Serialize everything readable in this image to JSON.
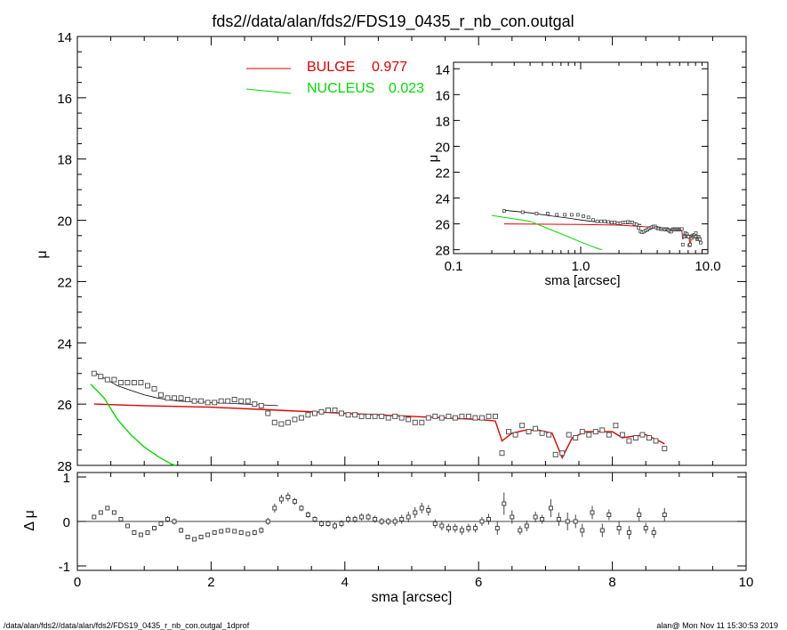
{
  "title": "fds2//data/alan/fds2/FDS19_0435_r_nb_con.outgal",
  "footer": {
    "left": "/data/alan/fds2//data/alan/fds2/FDS19_0435_r_nb_con.outgal_1dprof",
    "right": "alan@  Mon Nov 11 15:30:53 2019"
  },
  "colors": {
    "bulge": "#e00000",
    "nucleus": "#00dd00",
    "data": "#000000",
    "model": "#000000"
  },
  "chart_data": [
    {
      "panel": "main",
      "type": "scatter",
      "xlabel": "sma [arcsec]",
      "ylabel": "μ",
      "xlim": [
        0,
        10
      ],
      "ylim": [
        28,
        14
      ],
      "yticks": [
        14,
        16,
        18,
        20,
        22,
        24,
        26,
        28
      ],
      "xticks": [
        0,
        2,
        4,
        6,
        8,
        10
      ],
      "legend": [
        {
          "name": "BULGE",
          "value": "0.977",
          "color": "#e00000"
        },
        {
          "name": "NUCLEUS",
          "value": "0.023",
          "color": "#00dd00"
        }
      ],
      "series": [
        {
          "name": "data",
          "x": [
            0.25,
            0.35,
            0.45,
            0.55,
            0.65,
            0.75,
            0.85,
            0.95,
            1.05,
            1.15,
            1.25,
            1.35,
            1.45,
            1.55,
            1.65,
            1.75,
            1.85,
            1.95,
            2.05,
            2.15,
            2.25,
            2.35,
            2.45,
            2.55,
            2.65,
            2.75,
            2.85,
            2.95,
            3.05,
            3.15,
            3.25,
            3.35,
            3.45,
            3.55,
            3.65,
            3.75,
            3.85,
            3.95,
            4.05,
            4.15,
            4.25,
            4.35,
            4.45,
            4.55,
            4.65,
            4.75,
            4.85,
            4.95,
            5.05,
            5.15,
            5.25,
            5.35,
            5.45,
            5.55,
            5.65,
            5.75,
            5.85,
            5.95,
            6.05,
            6.15,
            6.25,
            6.35,
            6.45,
            6.55,
            6.65,
            6.75,
            6.85,
            6.95,
            7.05,
            7.15,
            7.25,
            7.35,
            7.45,
            7.55,
            7.65,
            7.75,
            7.85,
            7.95,
            8.05,
            8.15,
            8.25,
            8.35,
            8.45,
            8.55,
            8.65,
            8.78
          ],
          "y": [
            25.0,
            25.1,
            25.2,
            25.2,
            25.3,
            25.3,
            25.3,
            25.3,
            25.4,
            25.5,
            25.7,
            25.8,
            25.8,
            25.8,
            25.85,
            25.9,
            25.9,
            25.95,
            25.95,
            25.9,
            25.9,
            25.85,
            25.9,
            25.9,
            26.0,
            26.05,
            26.3,
            26.6,
            26.65,
            26.6,
            26.5,
            26.45,
            26.35,
            26.3,
            26.25,
            26.2,
            26.2,
            26.3,
            26.35,
            26.35,
            26.4,
            26.4,
            26.4,
            26.4,
            26.45,
            26.4,
            26.45,
            26.5,
            26.6,
            26.6,
            26.45,
            26.4,
            26.45,
            26.4,
            26.45,
            26.4,
            26.4,
            26.45,
            26.45,
            26.4,
            26.4,
            27.6,
            26.9,
            27.0,
            26.7,
            26.9,
            26.8,
            26.95,
            27.0,
            27.65,
            27.6,
            27.0,
            27.1,
            26.9,
            27.0,
            26.9,
            26.85,
            27.0,
            26.7,
            27.0,
            27.2,
            27.1,
            27.0,
            27.1,
            27.2,
            27.45
          ]
        },
        {
          "name": "model",
          "x": [
            0.25,
            0.4,
            0.6,
            0.8,
            1.0,
            1.2,
            1.5,
            2.0,
            2.5,
            3.0
          ],
          "y": [
            24.95,
            25.15,
            25.4,
            25.55,
            25.7,
            25.8,
            25.9,
            25.95,
            26.0,
            26.05
          ]
        },
        {
          "name": "BULGE",
          "x": [
            0.25,
            1.0,
            2.0,
            3.0,
            4.0,
            5.0,
            6.0,
            6.25,
            6.35,
            6.5,
            6.7,
            6.9,
            7.1,
            7.25,
            7.4,
            7.6,
            7.8,
            8.0,
            8.15,
            8.3,
            8.5,
            8.7,
            8.78
          ],
          "y": [
            26.0,
            26.05,
            26.1,
            26.2,
            26.3,
            26.4,
            26.5,
            26.55,
            27.2,
            26.95,
            26.85,
            26.85,
            26.95,
            27.75,
            27.1,
            26.9,
            26.9,
            26.9,
            27.1,
            27.05,
            27.0,
            27.2,
            27.3
          ]
        },
        {
          "name": "NUCLEUS",
          "x": [
            0.2,
            0.4,
            0.6,
            0.8,
            1.0,
            1.2,
            1.4,
            1.47
          ],
          "y": [
            25.35,
            25.8,
            26.5,
            27.0,
            27.4,
            27.7,
            27.95,
            28.0
          ]
        }
      ]
    },
    {
      "panel": "inset",
      "type": "scatter",
      "xlabel": "sma [arcsec]",
      "ylabel": "μ",
      "xscale": "log",
      "xlim": [
        0.1,
        10.0
      ],
      "xticks": [
        "0.1",
        "1.0",
        "10.0"
      ],
      "ylim": [
        28.3,
        13.5
      ],
      "yticks": [
        14,
        16,
        18,
        20,
        22,
        24,
        26,
        28
      ]
    },
    {
      "panel": "residual",
      "type": "scatter",
      "ylabel": "Δ μ",
      "xlim": [
        0,
        10
      ],
      "ylim": [
        -1.1,
        1.1
      ],
      "yticks": [
        -1,
        0,
        1
      ],
      "series": [
        {
          "name": "residuals",
          "x": [
            0.25,
            0.35,
            0.45,
            0.55,
            0.65,
            0.75,
            0.85,
            0.95,
            1.05,
            1.15,
            1.25,
            1.35,
            1.45,
            1.55,
            1.65,
            1.75,
            1.85,
            1.95,
            2.05,
            2.15,
            2.25,
            2.35,
            2.45,
            2.55,
            2.65,
            2.75,
            2.85,
            2.95,
            3.05,
            3.15,
            3.25,
            3.35,
            3.45,
            3.55,
            3.65,
            3.75,
            3.85,
            3.95,
            4.05,
            4.15,
            4.25,
            4.35,
            4.45,
            4.55,
            4.65,
            4.75,
            4.85,
            4.95,
            5.05,
            5.15,
            5.25,
            5.35,
            5.45,
            5.55,
            5.65,
            5.75,
            5.85,
            5.95,
            6.05,
            6.15,
            6.28,
            6.38,
            6.5,
            6.62,
            6.72,
            6.85,
            6.95,
            7.08,
            7.2,
            7.33,
            7.45,
            7.55,
            7.7,
            7.85,
            7.95,
            8.1,
            8.25,
            8.4,
            8.5,
            8.62,
            8.78
          ],
          "y": [
            0.1,
            0.2,
            0.3,
            0.2,
            0.05,
            -0.1,
            -0.25,
            -0.3,
            -0.25,
            -0.15,
            -0.05,
            0.05,
            0.0,
            -0.2,
            -0.35,
            -0.4,
            -0.35,
            -0.3,
            -0.25,
            -0.22,
            -0.2,
            -0.22,
            -0.25,
            -0.28,
            -0.25,
            -0.2,
            0.0,
            0.3,
            0.5,
            0.55,
            0.45,
            0.3,
            0.15,
            0.05,
            -0.05,
            -0.05,
            -0.1,
            -0.05,
            0.05,
            0.05,
            0.1,
            0.1,
            0.05,
            0.0,
            0.0,
            0.0,
            0.05,
            0.1,
            0.2,
            0.3,
            0.25,
            -0.05,
            -0.1,
            -0.15,
            -0.15,
            -0.2,
            -0.15,
            -0.15,
            0.0,
            0.05,
            -0.15,
            0.4,
            0.1,
            -0.2,
            -0.1,
            0.1,
            0.05,
            0.3,
            0.05,
            0.0,
            0.0,
            -0.2,
            0.2,
            -0.2,
            0.15,
            -0.15,
            -0.25,
            0.15,
            -0.15,
            -0.25,
            0.15
          ],
          "err": [
            0.03,
            0.04,
            0.05,
            0.05,
            0.05,
            0.04,
            0.04,
            0.04,
            0.05,
            0.05,
            0.06,
            0.07,
            0.07,
            0.06,
            0.05,
            0.05,
            0.05,
            0.05,
            0.05,
            0.05,
            0.05,
            0.05,
            0.05,
            0.05,
            0.06,
            0.07,
            0.08,
            0.1,
            0.1,
            0.1,
            0.08,
            0.07,
            0.07,
            0.07,
            0.07,
            0.07,
            0.08,
            0.08,
            0.08,
            0.08,
            0.08,
            0.08,
            0.08,
            0.08,
            0.08,
            0.1,
            0.1,
            0.12,
            0.12,
            0.12,
            0.12,
            0.1,
            0.1,
            0.1,
            0.1,
            0.1,
            0.1,
            0.1,
            0.1,
            0.12,
            0.15,
            0.25,
            0.15,
            0.1,
            0.12,
            0.12,
            0.1,
            0.2,
            0.15,
            0.2,
            0.15,
            0.15,
            0.15,
            0.15,
            0.12,
            0.15,
            0.15,
            0.15,
            0.12,
            0.12,
            0.15
          ]
        }
      ]
    }
  ]
}
